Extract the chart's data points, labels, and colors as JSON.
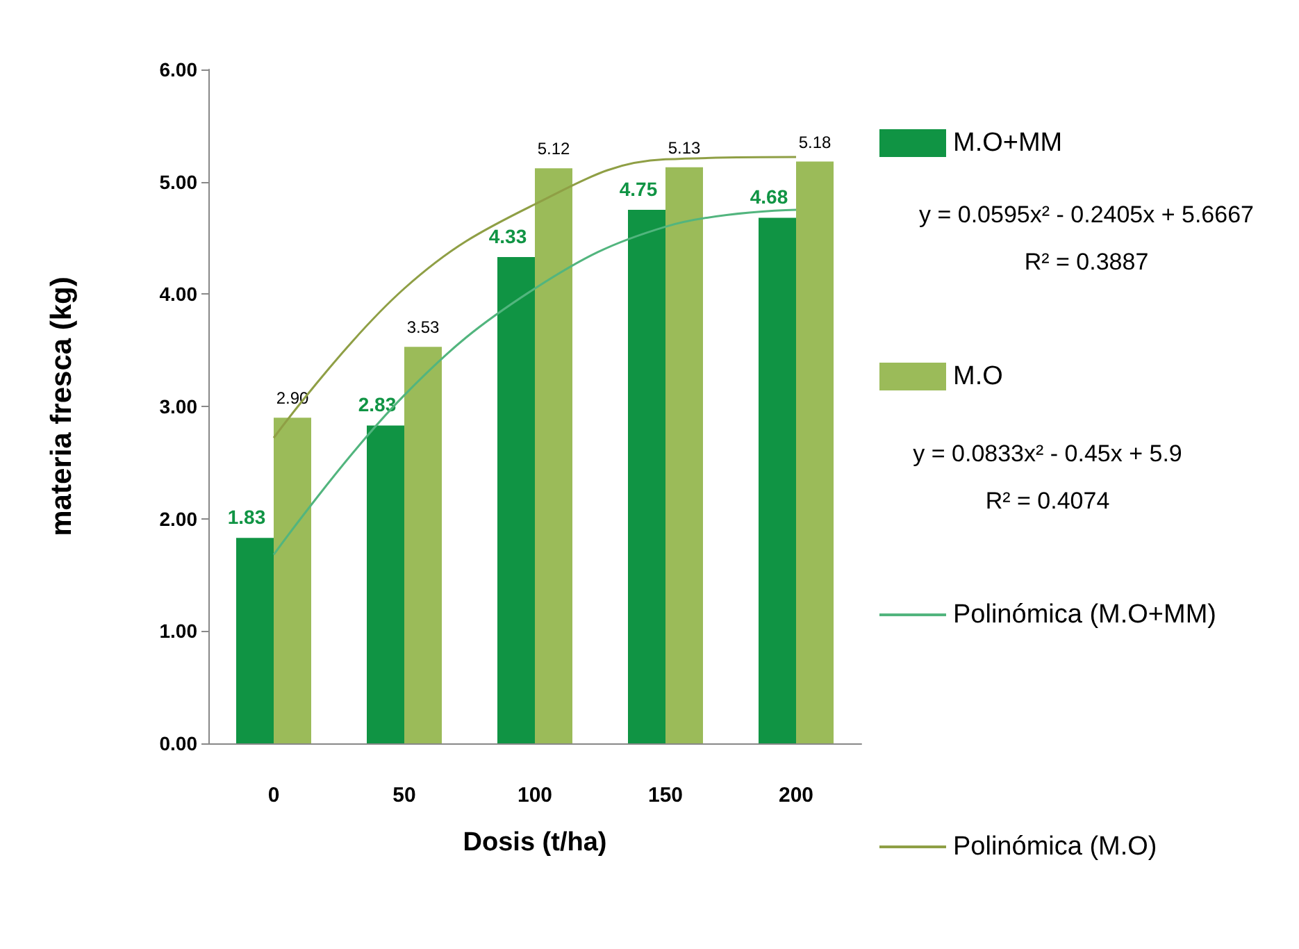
{
  "chart_data": {
    "type": "bar",
    "xlabel": "Dosis (t/ha)",
    "ylabel": "materia fresca (kg)",
    "categories": [
      "0",
      "50",
      "100",
      "150",
      "200"
    ],
    "series": [
      {
        "name": "M.O+MM",
        "color": "#109444",
        "values": [
          1.83,
          2.83,
          4.33,
          4.75,
          4.68
        ],
        "value_labels": [
          "1.83",
          "2.83",
          "4.33",
          "4.75",
          "4.68"
        ]
      },
      {
        "name": "M.O",
        "color": "#9bbb59",
        "values": [
          2.9,
          3.53,
          5.12,
          5.13,
          5.18
        ],
        "value_labels": [
          "2.90",
          "3.53",
          "5.12",
          "5.13",
          "5.18"
        ]
      },
      {
        "name": "Polinómica (M.O+MM)",
        "type": "line",
        "color": "#52b57e",
        "x": [
          "0",
          "50",
          "100",
          "150",
          "200"
        ],
        "values": [
          1.68,
          3.1,
          4.05,
          4.6,
          4.75
        ]
      },
      {
        "name": "Polinómica (M.O)",
        "type": "line",
        "color": "#8f9f45",
        "x": [
          "0",
          "50",
          "100",
          "150",
          "200"
        ],
        "values": [
          2.72,
          4.05,
          4.8,
          5.2,
          5.22
        ]
      }
    ],
    "ylim": [
      0,
      6
    ],
    "yticks": [
      {
        "value": 0,
        "label": "0.00"
      },
      {
        "value": 1,
        "label": "1.00"
      },
      {
        "value": 2,
        "label": "2.00"
      },
      {
        "value": 3,
        "label": "3.00"
      },
      {
        "value": 4,
        "label": "4.00"
      },
      {
        "value": 5,
        "label": "5.00"
      },
      {
        "value": 6,
        "label": "6.00"
      }
    ],
    "legend": "right",
    "grid": false,
    "marker": "none",
    "line_style": "solid",
    "annotations": [
      "y = 0.0595x² - 0.2405x + 5.6667",
      "R² = 0.3887",
      "y = 0.0833x² - 0.45x + 5.9",
      "R² = 0.4074"
    ]
  }
}
